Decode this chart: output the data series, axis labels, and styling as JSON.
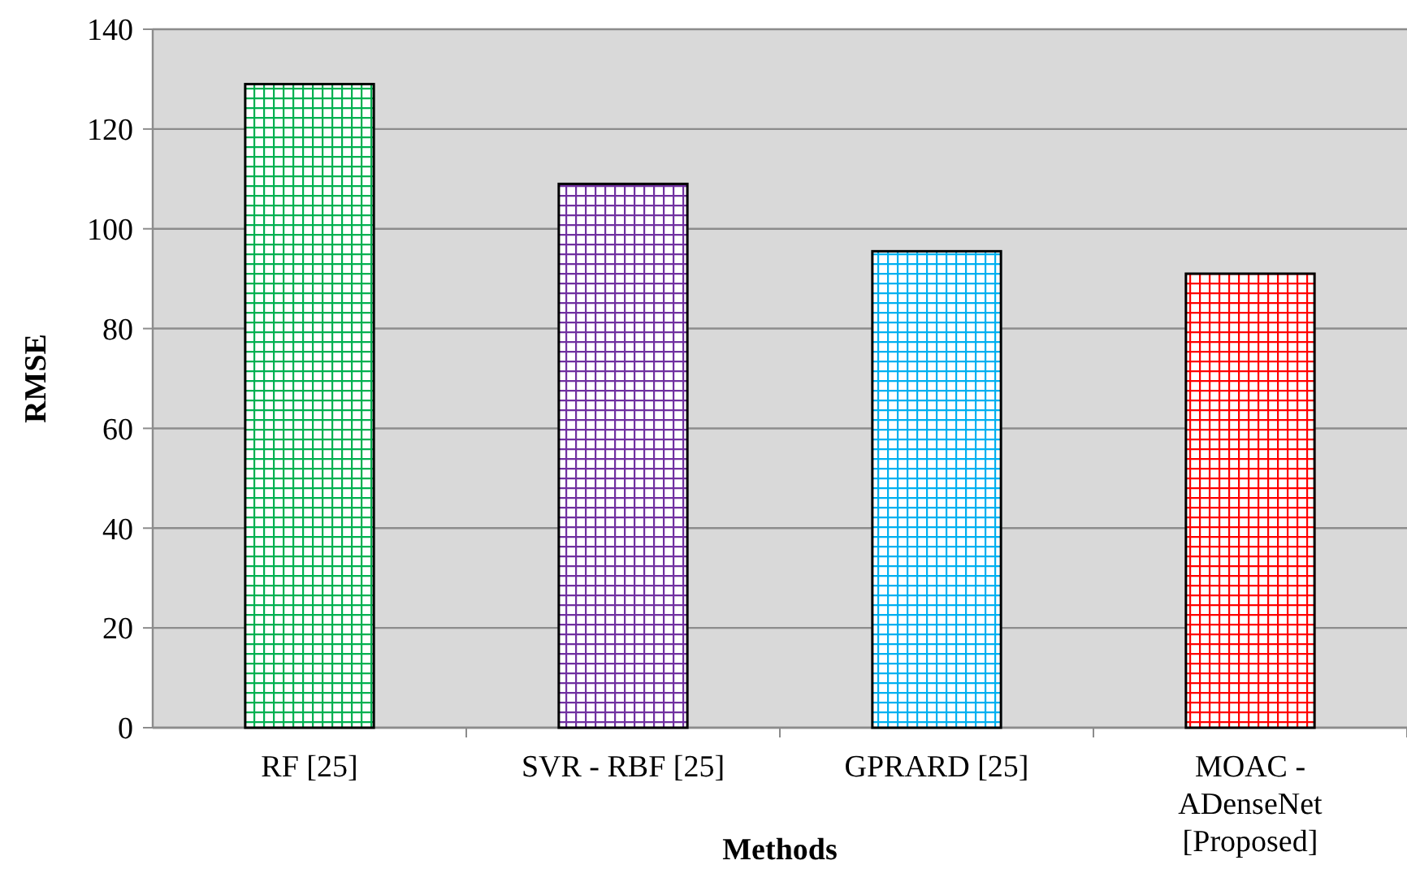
{
  "chart_data": {
    "type": "bar",
    "xlabel": "Methods",
    "ylabel": "RMSE",
    "categories": [
      "RF [25]",
      "SVR - RBF [25]",
      "GPRARD [25]",
      "MOAC - ADenseNet [Proposed]"
    ],
    "values": [
      129,
      109,
      95.5,
      91
    ],
    "colors": [
      "#00b050",
      "#7030a0",
      "#00b0f0",
      "#ff0000"
    ],
    "ylim": [
      0,
      140
    ],
    "yticks": [
      0,
      20,
      40,
      60,
      80,
      100,
      120,
      140
    ],
    "grid": "y"
  }
}
